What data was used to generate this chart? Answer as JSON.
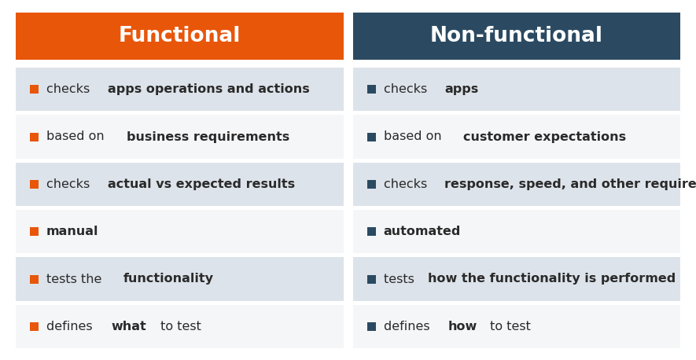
{
  "title_left": "Functional",
  "title_right": "Non-functional",
  "title_left_bg": "#E8560A",
  "title_right_bg": "#2B4A62",
  "title_text_color": "#FFFFFF",
  "row_bg_shade": "#DDE3EA",
  "row_bg_white": "#F5F6F8",
  "bullet_color_left": "#E8560A",
  "bullet_color_right": "#2B4A62",
  "text_color": "#2A2A2A",
  "bg_color": "#FFFFFF",
  "rows": [
    {
      "left_plain": "checks ",
      "left_bold": "apps operations and actions",
      "left_plain2": "",
      "right_plain": "checks ",
      "right_bold": "apps",
      "right_plain2": "",
      "shaded": true
    },
    {
      "left_plain": "based on ",
      "left_bold": "business requirements",
      "left_plain2": "",
      "right_plain": "based on ",
      "right_bold": "customer expectations",
      "right_plain2": "",
      "shaded": false
    },
    {
      "left_plain": "checks ",
      "left_bold": "actual vs expected results",
      "left_plain2": "",
      "right_plain": "checks ",
      "right_bold": "response, speed, and other requirements",
      "right_plain2": "",
      "shaded": true
    },
    {
      "left_plain": "",
      "left_bold": "manual",
      "left_plain2": "",
      "right_plain": "",
      "right_bold": "automated",
      "right_plain2": "",
      "shaded": false
    },
    {
      "left_plain": "tests the ",
      "left_bold": "functionality",
      "left_plain2": "",
      "right_plain": "tests ",
      "right_bold": "how the functionality is performed",
      "right_plain2": "",
      "shaded": true
    },
    {
      "left_plain": "defines ",
      "left_bold": "what",
      "left_plain2": " to test",
      "right_plain": "defines ",
      "right_bold": "how",
      "right_plain2": " to test",
      "shaded": false
    }
  ],
  "fig_width": 8.85,
  "fig_height": 4.58,
  "dpi": 100
}
